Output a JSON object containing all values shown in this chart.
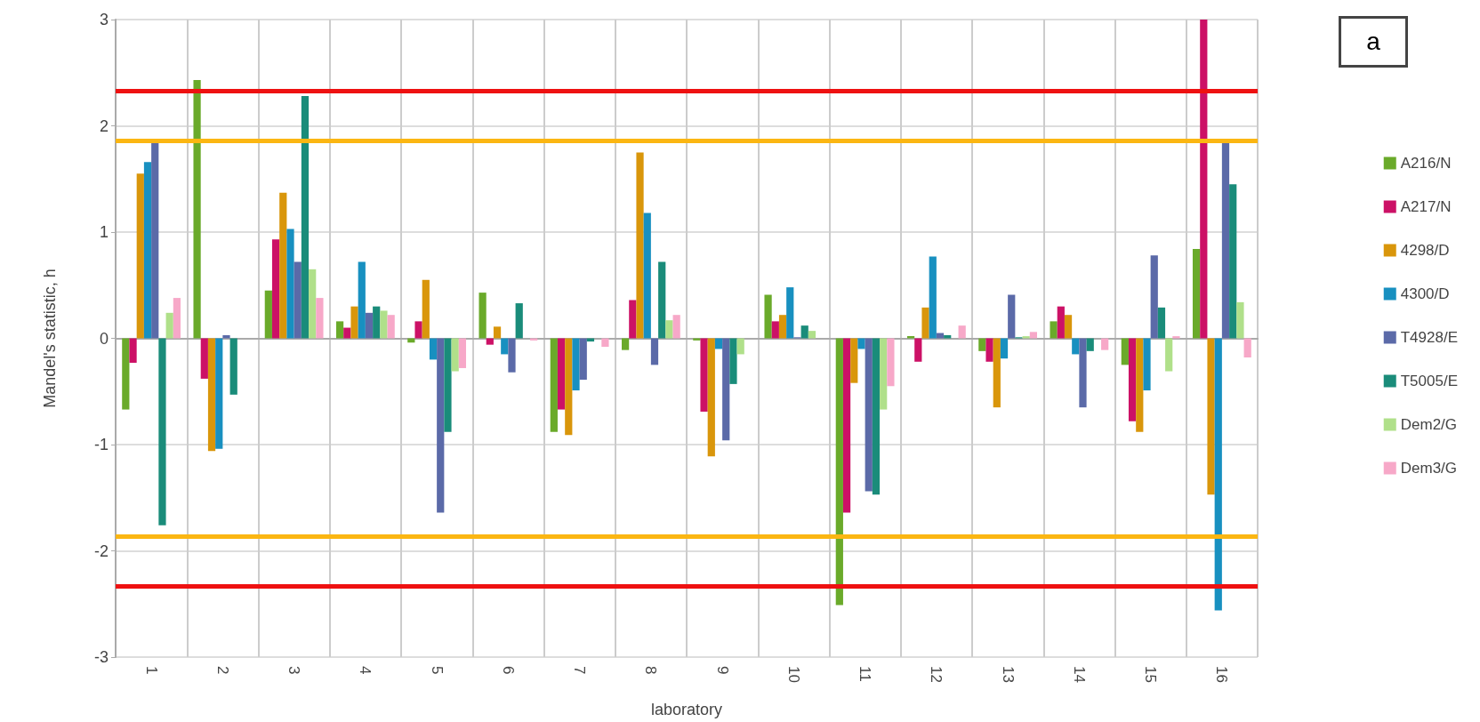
{
  "chart_data": {
    "type": "bar",
    "categories": [
      "1",
      "2",
      "3",
      "4",
      "5",
      "6",
      "7",
      "8",
      "9",
      "10",
      "11",
      "12",
      "13",
      "14",
      "15",
      "16"
    ],
    "xlabel": "laboratory",
    "ylabel": "Mandel's statistic, h",
    "annotations": [
      "a"
    ],
    "ylim": [
      -3,
      3
    ],
    "yticks": [
      -3,
      -2,
      -1,
      0,
      1,
      2,
      3
    ],
    "grid": true,
    "legend": "right",
    "series": [
      {
        "name": "A216/N",
        "color": "#6aaa2a",
        "values": [
          -0.67,
          2.43,
          0.45,
          0.16,
          -0.04,
          0.43,
          -0.88,
          -0.11,
          -0.02,
          0.41,
          -2.51,
          0.02,
          -0.12,
          0.16,
          -0.25,
          0.84
        ]
      },
      {
        "name": "A217/N",
        "color": "#cc1166",
        "values": [
          -0.23,
          -0.38,
          0.93,
          0.1,
          0.16,
          -0.06,
          -0.67,
          0.36,
          -0.69,
          0.16,
          -1.64,
          -0.22,
          -0.22,
          0.3,
          -0.78,
          3
        ]
      },
      {
        "name": "4298/D",
        "color": "#d9960b",
        "values": [
          1.55,
          -1.06,
          1.37,
          0.3,
          0.55,
          0.11,
          -0.91,
          1.75,
          -1.11,
          0.22,
          -0.42,
          0.29,
          -0.65,
          0.22,
          -0.88,
          -1.47
        ]
      },
      {
        "name": "4300/D",
        "color": "#1890c0",
        "values": [
          1.66,
          -1.04,
          1.03,
          0.72,
          -0.2,
          -0.15,
          -0.49,
          1.18,
          -0.1,
          0.48,
          -0.1,
          0.77,
          -0.19,
          -0.15,
          -0.49,
          -2.56
        ]
      },
      {
        "name": "T4928/E",
        "color": "#5b6aa8",
        "values": [
          1.84,
          0.03,
          0.72,
          0.24,
          -1.64,
          -0.32,
          -0.39,
          -0.25,
          -0.96,
          0.01,
          -1.44,
          0.05,
          0.41,
          -0.65,
          0.78,
          1.85
        ]
      },
      {
        "name": "T5005/E",
        "color": "#1a8c7a",
        "values": [
          -1.76,
          -0.53,
          2.28,
          0.3,
          -0.88,
          0.33,
          -0.03,
          0.72,
          -0.43,
          0.12,
          -1.47,
          0.03,
          0.01,
          -0.12,
          0.29,
          1.45
        ]
      },
      {
        "name": "Dem2/G",
        "color": "#b0e08a",
        "values": [
          0.24,
          0,
          0.65,
          0.26,
          -0.31,
          0,
          0,
          0.17,
          -0.15,
          0.07,
          -0.67,
          0,
          0.02,
          0,
          -0.31,
          0.34
        ]
      },
      {
        "name": "Dem3/G",
        "color": "#f7a8c8",
        "values": [
          0.38,
          0,
          0.38,
          0.22,
          -0.28,
          -0.02,
          -0.08,
          0.22,
          0,
          0,
          -0.45,
          0.12,
          0.06,
          -0.11,
          0.02,
          -0.18
        ]
      }
    ],
    "ref_lines": [
      {
        "axis": "y",
        "value": 2.33,
        "color": "#ee1111"
      },
      {
        "axis": "y",
        "value": 1.86,
        "color": "#fbb612"
      },
      {
        "axis": "y",
        "value": -1.86,
        "color": "#fbb612"
      },
      {
        "axis": "y",
        "value": -2.33,
        "color": "#ee1111"
      }
    ]
  }
}
